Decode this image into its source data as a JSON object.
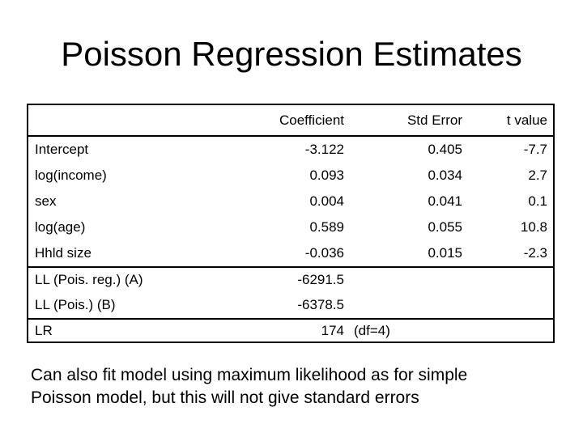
{
  "title": "Poisson Regression Estimates",
  "table": {
    "headers": {
      "coefficient": "Coefficient",
      "std_error": "Std Error",
      "t_value": "t value"
    },
    "rows": [
      {
        "label": "Intercept",
        "coefficient": "-3.122",
        "std_error": "0.405",
        "t_value": "-7.7"
      },
      {
        "label": "log(income)",
        "coefficient": "0.093",
        "std_error": "0.034",
        "t_value": "2.7"
      },
      {
        "label": "sex",
        "coefficient": "0.004",
        "std_error": "0.041",
        "t_value": "0.1"
      },
      {
        "label": "log(age)",
        "coefficient": "0.589",
        "std_error": "0.055",
        "t_value": "10.8"
      },
      {
        "label": "Hhld size",
        "coefficient": "-0.036",
        "std_error": "0.015",
        "t_value": "-2.3"
      }
    ],
    "summary_rows": [
      {
        "label": "LL (Pois. reg.) (A)",
        "value": "-6291.5"
      },
      {
        "label": "LL (Pois.) (B)",
        "value": "-6378.5"
      }
    ],
    "lr_row": {
      "label": "LR",
      "value": "174",
      "note": "(df=4)"
    }
  },
  "footer": {
    "lines": [
      "Can also fit model using maximum likelihood as for simple",
      "Poisson model, but this will not give standard errors"
    ]
  }
}
